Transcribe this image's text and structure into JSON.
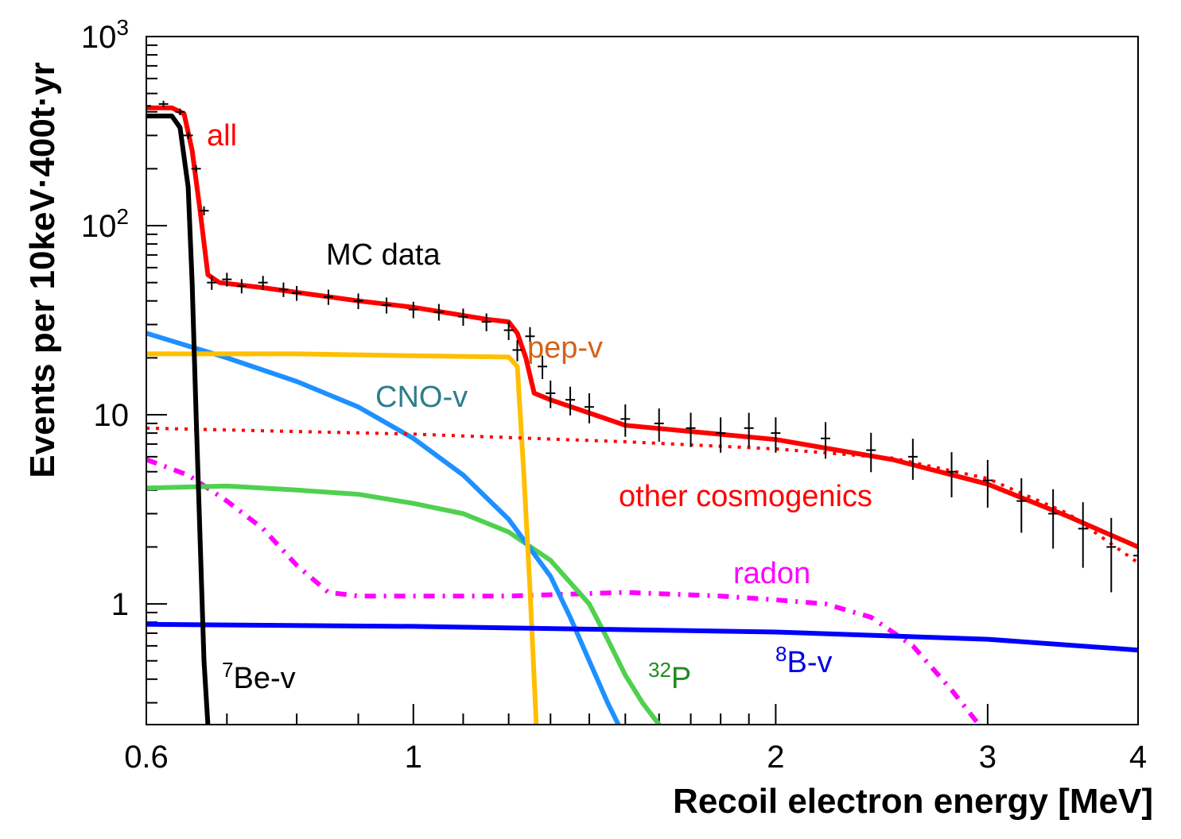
{
  "chart_data": {
    "type": "line",
    "title": "",
    "xlabel": "Recoil electron energy [MeV]",
    "ylabel": "Events per 10keV·400t·yr",
    "xscale": "log",
    "yscale": "log",
    "xlim": [
      0.6,
      4.0
    ],
    "ylim": [
      0.23,
      1000
    ],
    "x_ticks": [
      {
        "value": 0.6,
        "label": "0.6"
      },
      {
        "value": 1,
        "label": "1"
      },
      {
        "value": 2,
        "label": "2"
      },
      {
        "value": 3,
        "label": "3"
      },
      {
        "value": 4,
        "label": "4"
      }
    ],
    "y_ticks": [
      {
        "value": 1,
        "label": "1",
        "sup": ""
      },
      {
        "value": 10,
        "label": "10",
        "sup": ""
      },
      {
        "value": 100,
        "label": "10",
        "sup": "2"
      },
      {
        "value": 1000,
        "label": "10",
        "sup": "3"
      }
    ],
    "series": [
      {
        "name": "all",
        "color": "#ff0000",
        "style": "solid",
        "x": [
          0.6,
          0.63,
          0.645,
          0.655,
          0.665,
          0.675,
          0.69,
          0.75,
          0.9,
          1.0,
          1.15,
          1.2,
          1.22,
          1.24,
          1.26,
          1.3,
          1.5,
          2.0,
          2.5,
          3.0,
          3.5,
          4.0
        ],
        "y": [
          420,
          420,
          390,
          250,
          120,
          55,
          50,
          47,
          40,
          37,
          32,
          31,
          27,
          20,
          13,
          12,
          8.8,
          7.4,
          5.8,
          4.3,
          2.9,
          2.0
        ]
      },
      {
        "name": "MC data",
        "color": "#000000",
        "style": "points",
        "x": [
          0.6,
          0.62,
          0.64,
          0.65,
          0.66,
          0.67,
          0.68,
          0.7,
          0.72,
          0.75,
          0.78,
          0.8,
          0.85,
          0.9,
          0.95,
          1.0,
          1.05,
          1.1,
          1.15,
          1.2,
          1.22,
          1.25,
          1.28,
          1.3,
          1.35,
          1.4,
          1.5,
          1.6,
          1.7,
          1.8,
          1.9,
          2.0,
          2.2,
          2.4,
          2.6,
          2.8,
          3.0,
          3.2,
          3.4,
          3.6,
          3.8,
          4.0
        ],
        "y": [
          430,
          440,
          400,
          300,
          200,
          120,
          50,
          52,
          48,
          50,
          46,
          44,
          42,
          40,
          38,
          36,
          35,
          33,
          31,
          28,
          22,
          26,
          18,
          13,
          12,
          11,
          9.5,
          9,
          8.5,
          8,
          8.5,
          8,
          7.5,
          6.5,
          6,
          5,
          4.5,
          3.5,
          3,
          2.5,
          2,
          1.8
        ]
      },
      {
        "name": "pep-ν",
        "color": "#ffbf00",
        "style": "solid",
        "x": [
          0.6,
          0.8,
          1.0,
          1.2,
          1.22,
          1.235,
          1.25,
          1.26,
          1.265
        ],
        "y": [
          21,
          21,
          20.5,
          20.2,
          18,
          5,
          1.2,
          0.4,
          0.23
        ]
      },
      {
        "name": "CNO-ν",
        "color": "#1e90ff",
        "style": "solid",
        "x": [
          0.6,
          0.7,
          0.8,
          0.9,
          1.0,
          1.1,
          1.2,
          1.3,
          1.35,
          1.4,
          1.45,
          1.48
        ],
        "y": [
          27,
          20,
          15,
          11,
          7.5,
          4.8,
          2.8,
          1.4,
          0.85,
          0.5,
          0.3,
          0.23
        ]
      },
      {
        "name": "³²P",
        "color": "#4fd14f",
        "style": "solid",
        "x": [
          0.6,
          0.7,
          0.8,
          0.9,
          1.0,
          1.1,
          1.2,
          1.3,
          1.4,
          1.45,
          1.5,
          1.55,
          1.6
        ],
        "y": [
          4.1,
          4.2,
          4.0,
          3.8,
          3.4,
          3.0,
          2.4,
          1.7,
          1.0,
          0.65,
          0.42,
          0.3,
          0.23
        ]
      },
      {
        "name": "radon",
        "color": "#ff00ff",
        "style": "dashdot",
        "x": [
          0.6,
          0.65,
          0.7,
          0.75,
          0.8,
          0.85,
          0.9,
          1.0,
          1.2,
          1.5,
          1.8,
          2.0,
          2.2,
          2.4,
          2.6,
          2.8,
          2.95
        ],
        "y": [
          5.8,
          4.8,
          3.5,
          2.5,
          1.6,
          1.15,
          1.1,
          1.1,
          1.1,
          1.15,
          1.1,
          1.05,
          1.0,
          0.85,
          0.6,
          0.35,
          0.23
        ]
      },
      {
        "name": "other cosmogenics",
        "color": "#ff0000",
        "style": "dotted",
        "x": [
          0.6,
          1.0,
          1.5,
          2.0,
          2.5,
          3.0,
          3.5,
          4.0
        ],
        "y": [
          8.5,
          7.9,
          7.2,
          6.6,
          5.9,
          4.6,
          3.0,
          1.65
        ]
      },
      {
        "name": "⁸B-ν",
        "color": "#0000ff",
        "style": "solid",
        "x": [
          0.6,
          1.0,
          2.0,
          3.0,
          4.0
        ],
        "y": [
          0.78,
          0.76,
          0.71,
          0.65,
          0.57
        ]
      },
      {
        "name": "⁷Be-ν",
        "color": "#000000",
        "style": "solid",
        "x": [
          0.6,
          0.63,
          0.64,
          0.65,
          0.655,
          0.66,
          0.665,
          0.67,
          0.675
        ],
        "y": [
          380,
          380,
          330,
          160,
          50,
          10,
          2.2,
          0.5,
          0.23
        ]
      }
    ],
    "annotations": [
      {
        "id": "all",
        "text": "all",
        "sup": "",
        "suffix": "",
        "color": "#ff0000"
      },
      {
        "id": "mcdata",
        "text": "MC data",
        "sup": "",
        "suffix": "",
        "color": "#000000"
      },
      {
        "id": "pep",
        "text": "pep-v",
        "sup": "",
        "suffix": "",
        "color": "#d4621a"
      },
      {
        "id": "cno",
        "text": "CNO-v",
        "sup": "",
        "suffix": "",
        "color": "#2e7d8c"
      },
      {
        "id": "cosmo",
        "text": "other cosmogenics",
        "sup": "",
        "suffix": "",
        "color": "#ff0000"
      },
      {
        "id": "radon",
        "text": "radon",
        "sup": "",
        "suffix": "",
        "color": "#ff00ff"
      },
      {
        "id": "be7",
        "text": "",
        "sup": "7",
        "suffix": "Be-v",
        "color": "#000000"
      },
      {
        "id": "p32",
        "text": "",
        "sup": "32",
        "suffix": "P",
        "color": "#1e8c1e"
      },
      {
        "id": "b8",
        "text": "",
        "sup": "8",
        "suffix": "B-v",
        "color": "#0000e6"
      }
    ]
  }
}
